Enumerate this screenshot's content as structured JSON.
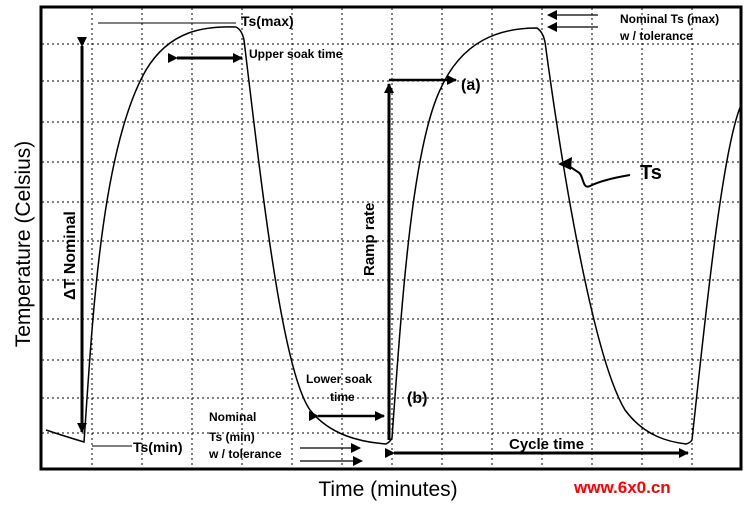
{
  "axis": {
    "xlabel": "Time  (minutes)",
    "ylabel": "Temperature (Celsius)"
  },
  "labels": {
    "ts_max": "Ts(max)",
    "ts_min": "Ts(min)",
    "upper_soak": "Upper soak time",
    "lower_soak_1": "Lower soak",
    "lower_soak_2": "time",
    "nominal_min_1": "Nominal",
    "nominal_min_2": "Ts (min)",
    "nominal_min_3": "w / tolerance",
    "nominal_max_1": "Nominal Ts (max)",
    "nominal_max_2": "w / tolerance",
    "delta_t": "ΔT Nominal",
    "ramp_rate": "Ramp rate",
    "point_a": "(a)",
    "point_b": "(b)",
    "ts": "Ts",
    "cycle_time": "Cycle time"
  },
  "watermark": "www.6x0.cn",
  "colors": {
    "line": "#000000",
    "watermark": "#ff0000"
  }
}
